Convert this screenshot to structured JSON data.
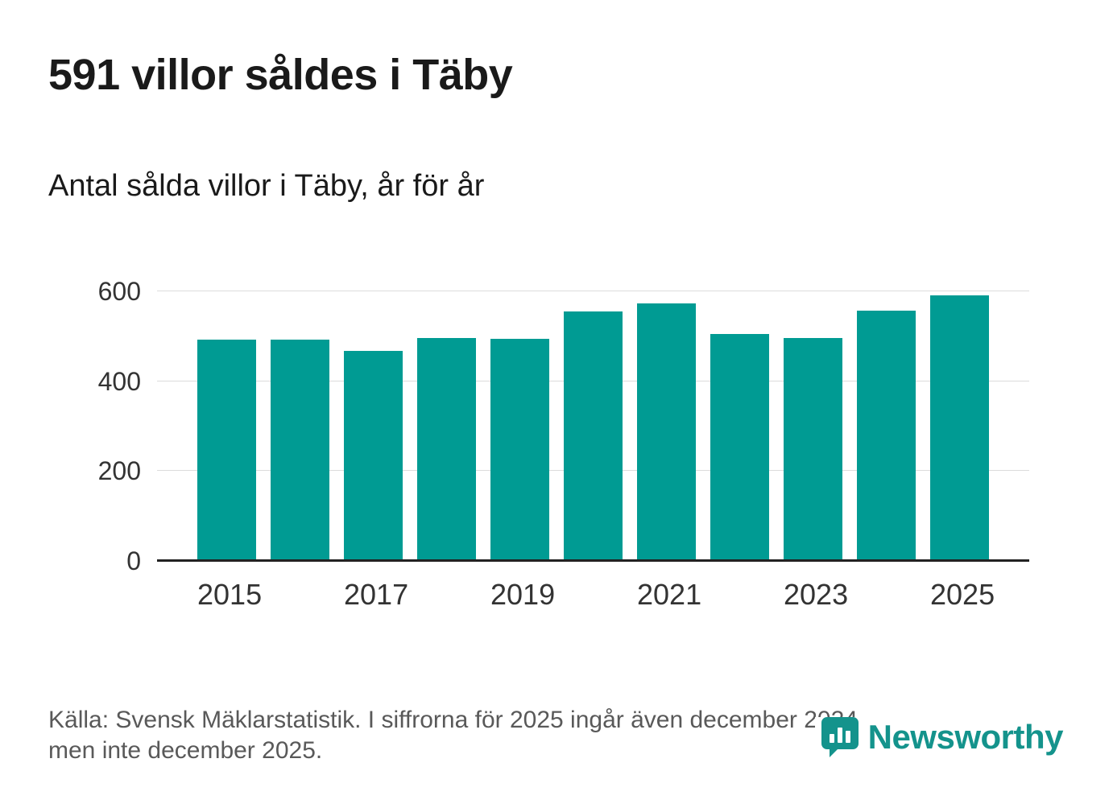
{
  "title": "591 villor såldes i Täby",
  "subtitle": "Antal sålda villor i Täby, år för år",
  "source_note": "Källa: Svensk Mäklarstatistik. I siffrorna för 2025 ingår även december 2024,\nmen inte december 2025.",
  "brand": {
    "name": "Newsworthy",
    "color": "#14938c"
  },
  "chart_data": {
    "type": "bar",
    "title": "591 villor såldes i Täby",
    "subtitle": "Antal sålda villor i Täby, år för år",
    "categories": [
      "2015",
      "2016",
      "2017",
      "2018",
      "2019",
      "2020",
      "2021",
      "2022",
      "2023",
      "2024",
      "2025"
    ],
    "values": [
      492,
      493,
      468,
      496,
      495,
      556,
      574,
      505,
      497,
      557,
      591
    ],
    "x_tick_labels": [
      "2015",
      "2017",
      "2019",
      "2021",
      "2023",
      "2025"
    ],
    "y_ticks": [
      0,
      200,
      400,
      600
    ],
    "ylim": [
      0,
      600
    ],
    "xlabel": "",
    "ylabel": "",
    "bar_color": "#009b93",
    "grid": true,
    "legend": "none"
  }
}
